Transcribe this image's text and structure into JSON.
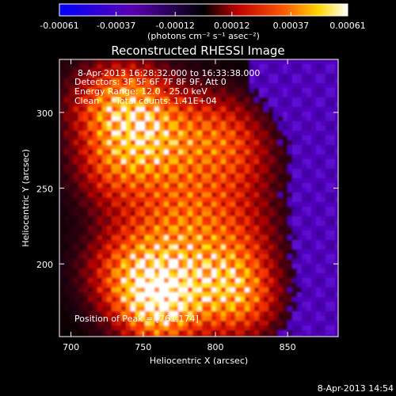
{
  "chart_data": {
    "type": "heatmap",
    "title": "Reconstructed RHESSI Image",
    "xlabel": "Heliocentric X (arcsec)",
    "ylabel": "Heliocentric Y (arcsec)",
    "xlim": [
      692,
      885
    ],
    "ylim": [
      152,
      335
    ],
    "xticks": [
      700,
      750,
      800,
      850
    ],
    "yticks": [
      200,
      250,
      300
    ],
    "colorbar": {
      "ticks": [
        "-0.00061",
        "-0.00037",
        "-0.00012",
        "0.00012",
        "0.00037",
        "0.00061"
      ],
      "units_line": "(photons cm⁻² s⁻¹ asec⁻²)",
      "range": [
        -0.00061,
        0.00061
      ]
    },
    "peak": {
      "x": 761,
      "y": 174
    },
    "hot_spots": [
      {
        "x": 761,
        "y": 174,
        "v": 0.00061
      },
      {
        "x": 817,
        "y": 177,
        "v": 0.00042
      },
      {
        "x": 760,
        "y": 280,
        "v": 0.00034
      },
      {
        "x": 728,
        "y": 262,
        "v": 0.0003
      },
      {
        "x": 745,
        "y": 310,
        "v": 0.00028
      },
      {
        "x": 800,
        "y": 290,
        "v": 0.00026
      },
      {
        "x": 720,
        "y": 305,
        "v": 0.00027
      },
      {
        "x": 785,
        "y": 240,
        "v": 0.00025
      },
      {
        "x": 760,
        "y": 215,
        "v": 0.00024
      },
      {
        "x": 730,
        "y": 195,
        "v": 0.00025
      },
      {
        "x": 800,
        "y": 200,
        "v": 0.00022
      },
      {
        "x": 820,
        "y": 270,
        "v": 0.0002
      },
      {
        "x": 825,
        "y": 225,
        "v": 0.00016
      }
    ],
    "annotations": {
      "time_range": "8-Apr-2013 16:28:32.000 to 16:33:38.000",
      "detectors": "Detectors: 3F 5F 6F 7F 8F 9F, Att 0",
      "energy": "Energy Range: 12.0 - 25.0 keV",
      "clean": "Clean",
      "counts": "Total counts: 1.41E+04",
      "peak_label": "Position of Peak = [761,174]"
    }
  },
  "footer": {
    "timestamp": "8-Apr-2013 14:54"
  }
}
